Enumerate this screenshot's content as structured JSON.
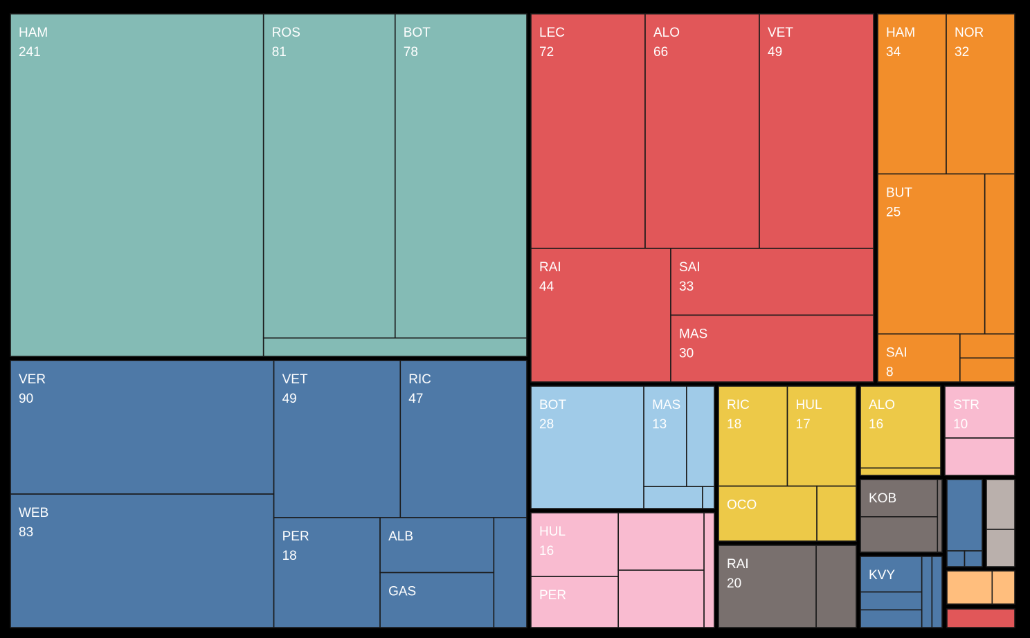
{
  "chart_data": {
    "type": "treemap",
    "title": "",
    "groups": [
      {
        "color": "#84bbb5",
        "items": [
          {
            "label": "HAM",
            "value": 241,
            "show_value": "241"
          },
          {
            "label": "ROS",
            "value": 81,
            "show_value": "81"
          },
          {
            "label": "BOT",
            "value": 78,
            "show_value": "78"
          },
          {
            "label": "",
            "value": 9,
            "show_value": ""
          }
        ]
      },
      {
        "color": "#4e79a7",
        "items": [
          {
            "label": "VER",
            "value": 90,
            "show_value": "90"
          },
          {
            "label": "WEB",
            "value": 83,
            "show_value": "83"
          },
          {
            "label": "VET",
            "value": 49,
            "show_value": "49"
          },
          {
            "label": "RIC",
            "value": 47,
            "show_value": "47"
          },
          {
            "label": "PER",
            "value": 18,
            "show_value": "18"
          },
          {
            "label": "ALB",
            "value": 16,
            "show_value": ""
          },
          {
            "label": "GAS",
            "value": 14,
            "show_value": ""
          },
          {
            "label": "",
            "value": 10,
            "show_value": ""
          }
        ]
      },
      {
        "color": "#e15759",
        "items": [
          {
            "label": "LEC",
            "value": 72,
            "show_value": "72"
          },
          {
            "label": "ALO",
            "value": 66,
            "show_value": "66"
          },
          {
            "label": "VET",
            "value": 49,
            "show_value": "49"
          },
          {
            "label": "RAI",
            "value": 44,
            "show_value": "44"
          },
          {
            "label": "SAI",
            "value": 33,
            "show_value": "33"
          },
          {
            "label": "MAS",
            "value": 30,
            "show_value": "30"
          }
        ]
      },
      {
        "color": "#f28e2b",
        "items": [
          {
            "label": "HAM",
            "value": 34,
            "show_value": "34"
          },
          {
            "label": "NOR",
            "value": 32,
            "show_value": "32"
          },
          {
            "label": "BUT",
            "value": 25,
            "show_value": "25"
          },
          {
            "label": "",
            "value": 9,
            "show_value": ""
          },
          {
            "label": "SAI",
            "value": 8,
            "show_value": "8"
          },
          {
            "label": "",
            "value": 4,
            "show_value": ""
          },
          {
            "label": "",
            "value": 3,
            "show_value": ""
          }
        ]
      },
      {
        "color": "#a0cbe8",
        "items": [
          {
            "label": "BOT",
            "value": 28,
            "show_value": "28"
          },
          {
            "label": "MAS",
            "value": 13,
            "show_value": "13"
          },
          {
            "label": "",
            "value": 10,
            "show_value": ""
          },
          {
            "label": "",
            "value": 3,
            "show_value": ""
          },
          {
            "label": "",
            "value": 1,
            "show_value": ""
          }
        ]
      },
      {
        "color": "#edc948",
        "items": [
          {
            "label": "RIC",
            "value": 18,
            "show_value": "18"
          },
          {
            "label": "HUL",
            "value": 17,
            "show_value": "17"
          },
          {
            "label": "OCO",
            "value": 13,
            "show_value": ""
          },
          {
            "label": "",
            "value": 5,
            "show_value": ""
          }
        ]
      },
      {
        "color": "#f9bbd0",
        "items": [
          {
            "label": "HUL",
            "value": 16,
            "show_value": "16"
          },
          {
            "label": "PER",
            "value": 12,
            "show_value": ""
          },
          {
            "label": "",
            "value": 8,
            "show_value": ""
          },
          {
            "label": "",
            "value": 8,
            "show_value": ""
          },
          {
            "label": "",
            "value": 2,
            "show_value": ""
          }
        ]
      },
      {
        "color": "#edc948",
        "items": [
          {
            "label": "ALO",
            "value": 16,
            "show_value": "16"
          },
          {
            "label": "",
            "value": 1,
            "show_value": ""
          }
        ]
      },
      {
        "color": "#f9bbd0",
        "items": [
          {
            "label": "STR",
            "value": 10,
            "show_value": "10"
          },
          {
            "label": "",
            "value": 5,
            "show_value": ""
          }
        ]
      },
      {
        "color": "#79706e",
        "items": [
          {
            "label": "RAI",
            "value": 20,
            "show_value": "20"
          },
          {
            "label": "",
            "value": 8,
            "show_value": ""
          }
        ]
      },
      {
        "color": "#79706e",
        "items": [
          {
            "label": "KOB",
            "value": 8,
            "show_value": ""
          },
          {
            "label": "",
            "value": 6,
            "show_value": ""
          },
          {
            "label": "",
            "value": 1,
            "show_value": ""
          }
        ]
      },
      {
        "color": "#4e79a7",
        "items": [
          {
            "label": "KVY",
            "value": 7,
            "show_value": ""
          },
          {
            "label": "",
            "value": 4,
            "show_value": ""
          },
          {
            "label": "",
            "value": 4,
            "show_value": ""
          },
          {
            "label": "",
            "value": 1,
            "show_value": ""
          },
          {
            "label": "",
            "value": 1,
            "show_value": ""
          }
        ]
      },
      {
        "color": "#4e79a7",
        "items": [
          {
            "label": "",
            "value": 9,
            "show_value": ""
          },
          {
            "label": "",
            "value": 1,
            "show_value": ""
          },
          {
            "label": "",
            "value": 1,
            "show_value": ""
          }
        ]
      },
      {
        "color": "#bab0ac",
        "items": [
          {
            "label": "",
            "value": 4,
            "show_value": ""
          },
          {
            "label": "",
            "value": 3,
            "show_value": ""
          }
        ]
      },
      {
        "color": "#ffbe7d",
        "items": [
          {
            "label": "",
            "value": 4,
            "show_value": ""
          },
          {
            "label": "",
            "value": 2,
            "show_value": ""
          }
        ]
      },
      {
        "color": "#e15759",
        "items": [
          {
            "label": "",
            "value": 3,
            "show_value": ""
          }
        ]
      }
    ]
  }
}
